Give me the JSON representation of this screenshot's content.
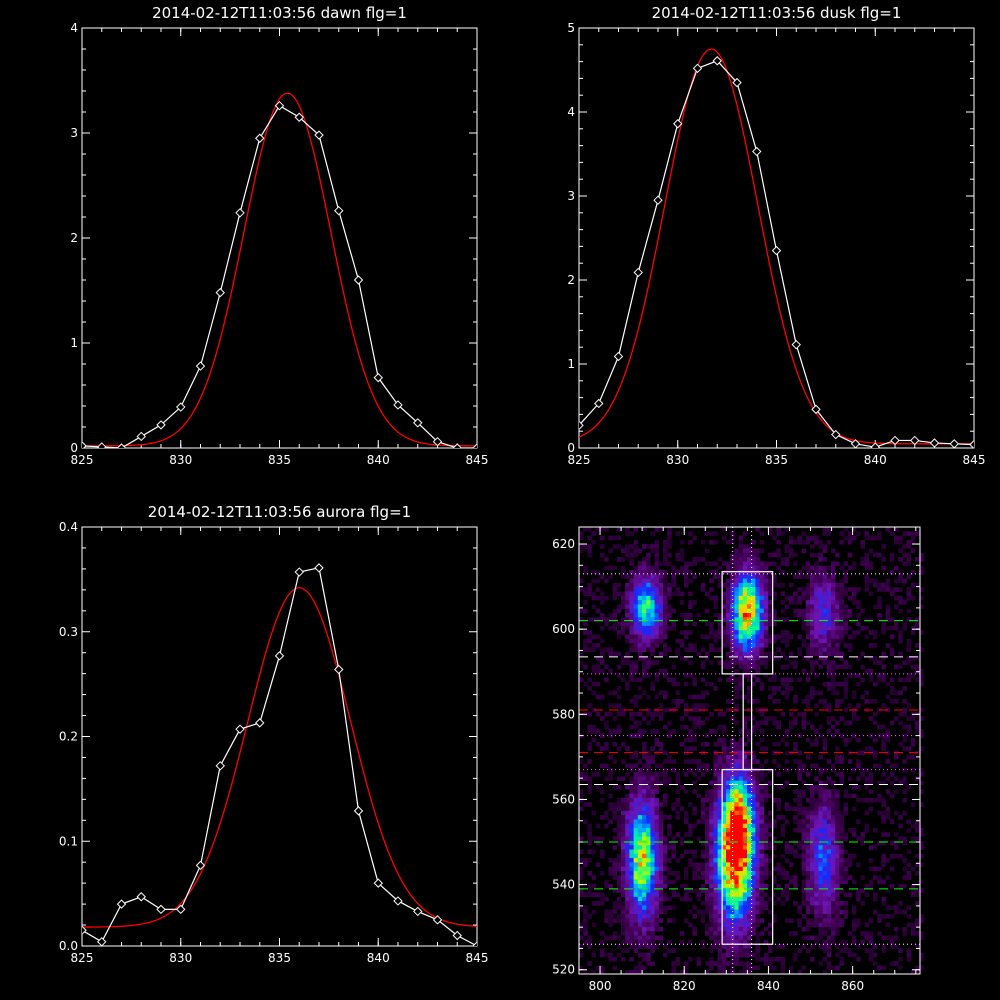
{
  "chart_data": [
    {
      "type": "line",
      "title": "2014-02-12T11:03:56 dawn flg=1",
      "xlim": [
        825,
        845
      ],
      "ylim": [
        0,
        4
      ],
      "xticks": [
        825,
        830,
        835,
        840,
        845
      ],
      "yticks": [
        0,
        1,
        2,
        3,
        4
      ],
      "series": [
        {
          "color": "#ffffff",
          "marker": "diamond",
          "x": [
            825,
            826,
            827,
            828,
            829,
            830,
            831,
            832,
            833,
            834,
            835,
            836,
            837,
            838,
            839,
            840,
            841,
            842,
            843,
            844,
            845
          ],
          "values": [
            0.02,
            0.01,
            0.0,
            0.11,
            0.22,
            0.39,
            0.78,
            1.48,
            2.24,
            2.95,
            3.26,
            3.15,
            2.98,
            2.26,
            1.6,
            0.67,
            0.41,
            0.24,
            0.06,
            0.0,
            0.0
          ]
        },
        {
          "color": "#ff0000",
          "kind": "gaussian_fit",
          "amplitude": 3.36,
          "center": 835.4,
          "sigma": 2.2,
          "baseline": 0.02
        }
      ]
    },
    {
      "type": "line",
      "title": "2014-02-12T11:03:56 dusk flg=1",
      "xlim": [
        825,
        845
      ],
      "ylim": [
        0,
        5
      ],
      "xticks": [
        825,
        830,
        835,
        840,
        845
      ],
      "yticks": [
        0,
        1,
        2,
        3,
        4,
        5
      ],
      "series": [
        {
          "color": "#ffffff",
          "marker": "diamond",
          "x": [
            825,
            826,
            827,
            828,
            829,
            830,
            831,
            832,
            833,
            834,
            835,
            836,
            837,
            838,
            839,
            840,
            841,
            842,
            843,
            844,
            845
          ],
          "values": [
            0.27,
            0.53,
            1.09,
            2.09,
            2.95,
            3.86,
            4.52,
            4.61,
            4.35,
            3.53,
            2.35,
            1.23,
            0.46,
            0.16,
            0.05,
            0.01,
            0.09,
            0.09,
            0.06,
            0.05,
            0.04
          ]
        },
        {
          "color": "#ff0000",
          "kind": "gaussian_fit",
          "amplitude": 4.7,
          "center": 831.7,
          "sigma": 2.35,
          "baseline": 0.05
        }
      ]
    },
    {
      "type": "line",
      "title": "2014-02-12T11:03:56 aurora flg=1",
      "xlim": [
        825,
        845
      ],
      "ylim": [
        0,
        0.4
      ],
      "xticks": [
        825,
        830,
        835,
        840,
        845
      ],
      "yticks": [
        0.0,
        0.1,
        0.2,
        0.3,
        0.4
      ],
      "series": [
        {
          "color": "#ffffff",
          "marker": "diamond",
          "x": [
            825,
            826,
            827,
            828,
            829,
            830,
            831,
            832,
            833,
            834,
            835,
            836,
            837,
            838,
            839,
            840,
            841,
            842,
            843,
            844,
            845
          ],
          "values": [
            0.015,
            0.004,
            0.04,
            0.047,
            0.035,
            0.035,
            0.077,
            0.172,
            0.207,
            0.213,
            0.277,
            0.357,
            0.361,
            0.264,
            0.129,
            0.06,
            0.043,
            0.033,
            0.025,
            0.01,
            0.0
          ]
        },
        {
          "color": "#ff0000",
          "kind": "gaussian_fit",
          "amplitude": 0.324,
          "center": 836.0,
          "sigma": 2.6,
          "baseline": 0.018
        }
      ]
    },
    {
      "type": "heatmap",
      "xlim": [
        795,
        876
      ],
      "ylim": [
        519,
        624
      ],
      "xticks": [
        800,
        820,
        840,
        860
      ],
      "yticks": [
        520,
        540,
        560,
        580,
        600,
        620
      ],
      "colormap": "rainbow",
      "intensity_blobs": [
        {
          "x": 811,
          "y": 605,
          "sx": 2.5,
          "sy": 5,
          "amp": 0.6
        },
        {
          "x": 835,
          "y": 604,
          "sx": 2.5,
          "sy": 6,
          "amp": 0.9
        },
        {
          "x": 810,
          "y": 546,
          "sx": 2.5,
          "sy": 9,
          "amp": 0.75
        },
        {
          "x": 832,
          "y": 546,
          "sx": 3,
          "sy": 10,
          "amp": 1.0
        },
        {
          "x": 833,
          "y": 556,
          "sx": 2.5,
          "sy": 7,
          "amp": 0.55
        },
        {
          "x": 853,
          "y": 546,
          "sx": 2.5,
          "sy": 9,
          "amp": 0.35
        },
        {
          "x": 853,
          "y": 604,
          "sx": 2.5,
          "sy": 6,
          "amp": 0.3
        }
      ],
      "boxes": [
        {
          "x1": 829,
          "x2": 841,
          "y1": 589.5,
          "y2": 613.5,
          "color": "#ffffff"
        },
        {
          "x1": 829,
          "x2": 841,
          "y1": 526,
          "y2": 567,
          "color": "#ffffff"
        },
        {
          "x1": 834,
          "x2": 836,
          "y1": 567,
          "y2": 589.5,
          "color": "#ffffff"
        }
      ],
      "hlines": [
        {
          "y": 613,
          "color": "#ffffff",
          "style": "dotted"
        },
        {
          "y": 602,
          "color": "#00ff00",
          "style": "dashed"
        },
        {
          "y": 593.5,
          "color": "#ffffff",
          "style": "dashed"
        },
        {
          "y": 589.5,
          "color": "#ff66ff",
          "style": "dotted"
        },
        {
          "y": 581,
          "color": "#ff0000",
          "style": "dashed"
        },
        {
          "y": 575,
          "color": "#ff66ff",
          "style": "dotted"
        },
        {
          "y": 571,
          "color": "#ff0000",
          "style": "dashed"
        },
        {
          "y": 567,
          "color": "#ff66ff",
          "style": "dotted"
        },
        {
          "y": 563.5,
          "color": "#ffffff",
          "style": "dashed"
        },
        {
          "y": 550,
          "color": "#00ff00",
          "style": "dashed"
        },
        {
          "y": 539,
          "color": "#00ff00",
          "style": "dashed"
        },
        {
          "y": 526,
          "color": "#ffffff",
          "style": "dotted"
        }
      ],
      "vlines": [
        {
          "x": 831.5,
          "color": "#ffffff",
          "style": "dotted"
        },
        {
          "x": 836,
          "color": "#ffffff",
          "style": "dotted"
        }
      ]
    }
  ]
}
